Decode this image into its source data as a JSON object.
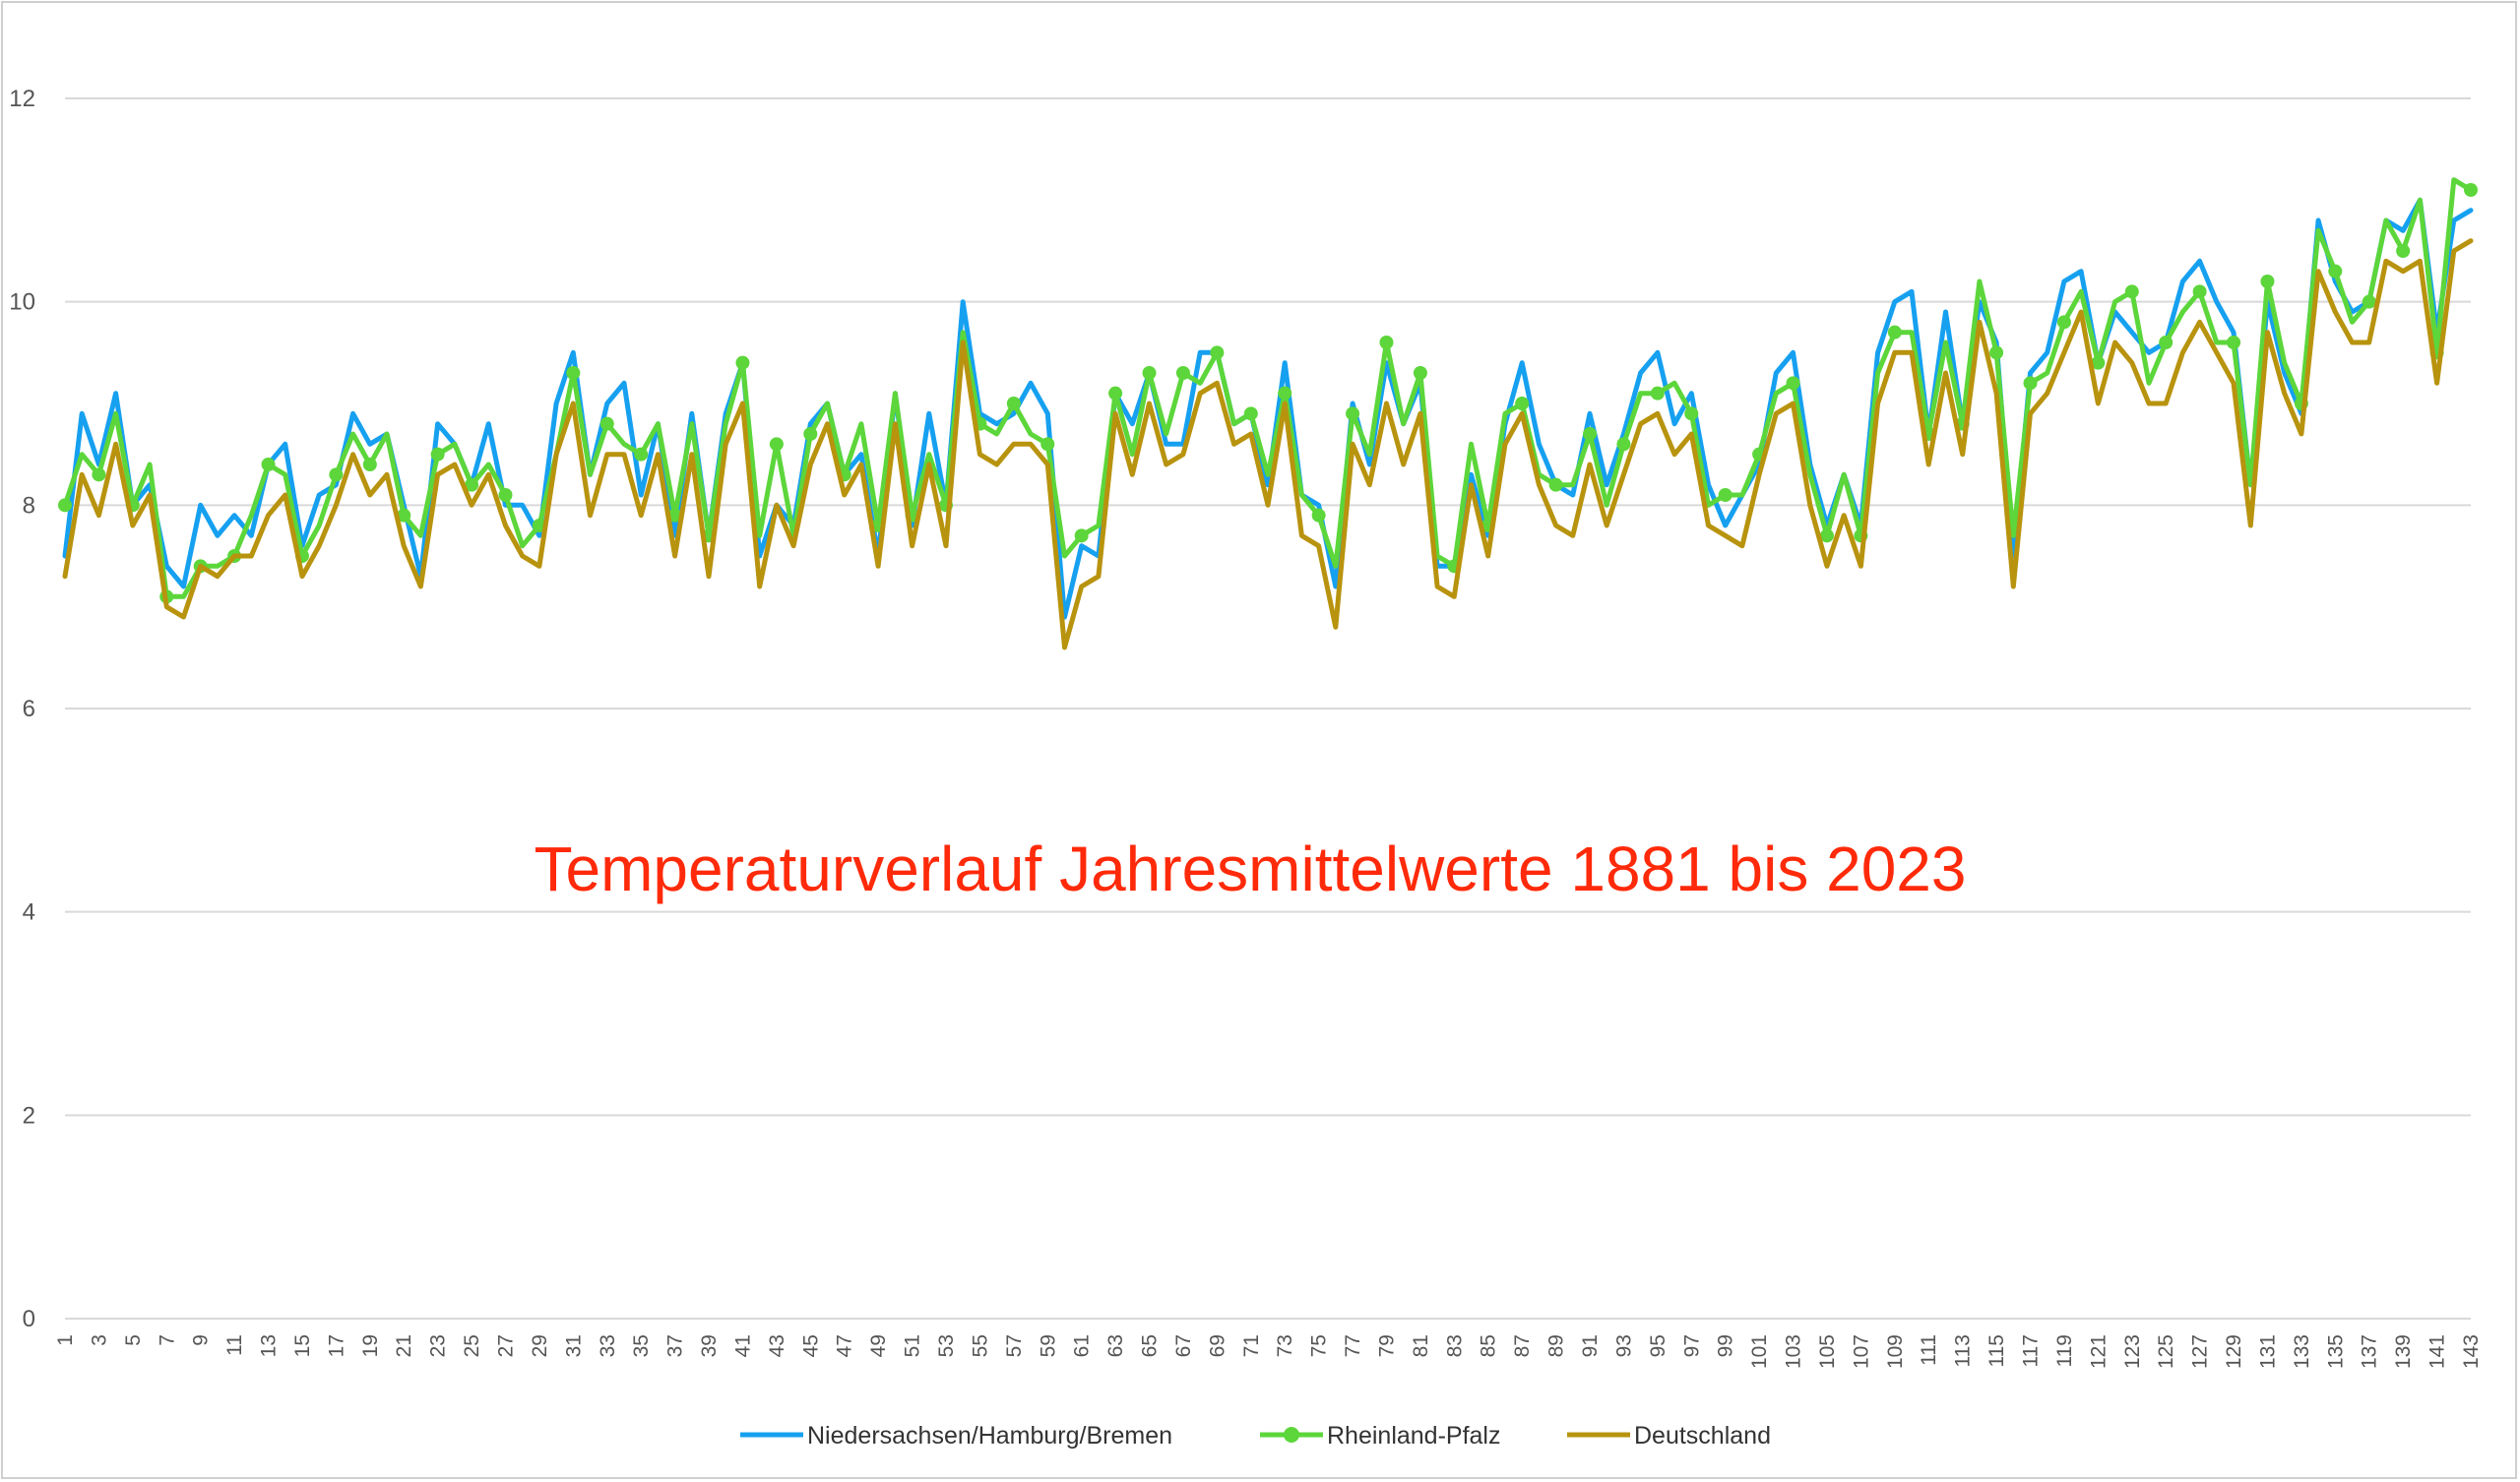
{
  "chart_data": {
    "type": "line",
    "title": "Temperaturverlauf Jahresmittelwerte 1881 bis 2023",
    "title_color": "#ff2a0a",
    "xlabel": "",
    "ylabel": "",
    "ylim": [
      0,
      12
    ],
    "y_ticks": [
      0,
      2,
      4,
      6,
      8,
      10,
      12
    ],
    "x_ticks": [
      1,
      3,
      5,
      7,
      9,
      11,
      13,
      15,
      17,
      19,
      21,
      23,
      25,
      27,
      29,
      31,
      33,
      35,
      37,
      39,
      41,
      43,
      45,
      47,
      49,
      51,
      53,
      55,
      57,
      59,
      61,
      63,
      65,
      67,
      69,
      71,
      73,
      75,
      77,
      79,
      81,
      83,
      85,
      87,
      89,
      91,
      93,
      95,
      97,
      99,
      101,
      103,
      105,
      107,
      109,
      111,
      113,
      115,
      117,
      119,
      121,
      123,
      125,
      127,
      129,
      131,
      133,
      135,
      137,
      139,
      141,
      143
    ],
    "x_range": [
      1,
      143
    ],
    "grid": "horizontal",
    "legend_position": "bottom",
    "series": [
      {
        "name": "Niedersachsen/Hamburg/Bremen",
        "color": "#16a0f0",
        "marker": "none",
        "values": [
          7.5,
          8.9,
          8.4,
          9.1,
          8.0,
          8.2,
          7.4,
          7.2,
          8.0,
          7.7,
          7.9,
          7.7,
          8.4,
          8.6,
          7.6,
          8.1,
          8.2,
          8.9,
          8.6,
          8.7,
          8.0,
          7.3,
          8.8,
          8.6,
          8.2,
          8.8,
          8.0,
          8.0,
          7.7,
          9.0,
          9.5,
          8.3,
          9.0,
          9.2,
          8.1,
          8.8,
          7.7,
          8.9,
          7.7,
          8.9,
          9.4,
          7.5,
          8.0,
          7.8,
          8.8,
          9.0,
          8.3,
          8.5,
          7.5,
          9.1,
          7.8,
          8.9,
          8.0,
          10.0,
          8.9,
          8.8,
          8.9,
          9.2,
          8.9,
          6.9,
          7.6,
          7.5,
          9.1,
          8.8,
          9.3,
          8.6,
          8.6,
          9.5,
          9.5,
          8.8,
          8.9,
          8.2,
          9.4,
          8.1,
          8.0,
          7.2,
          9.0,
          8.4,
          9.4,
          8.8,
          9.2,
          7.4,
          7.4,
          8.3,
          7.7,
          8.8,
          9.4,
          8.6,
          8.2,
          8.1,
          8.9,
          8.2,
          8.7,
          9.3,
          9.5,
          8.8,
          9.1,
          8.2,
          7.8,
          8.1,
          8.4,
          9.3,
          9.5,
          8.4,
          7.8,
          8.3,
          7.8,
          9.5,
          10.0,
          10.1,
          8.7,
          9.9,
          8.8,
          10.0,
          9.6,
          7.5,
          9.3,
          9.5,
          10.2,
          10.3,
          9.4,
          9.9,
          9.7,
          9.5,
          9.6,
          10.2,
          10.4,
          10.0,
          9.7,
          8.2,
          10.0,
          9.3,
          8.9,
          10.8,
          10.2,
          9.9,
          10.0,
          10.8,
          10.7,
          11.0,
          9.7,
          10.8,
          10.9
        ]
      },
      {
        "name": "Rheinland-Pfalz",
        "color": "#5cd63a",
        "marker": "circle",
        "values": [
          8.0,
          8.5,
          8.3,
          8.9,
          8.0,
          8.4,
          7.1,
          7.1,
          7.4,
          7.4,
          7.5,
          7.9,
          8.4,
          8.3,
          7.5,
          7.8,
          8.3,
          8.7,
          8.4,
          8.7,
          7.9,
          7.7,
          8.5,
          8.6,
          8.2,
          8.4,
          8.1,
          7.6,
          7.8,
          8.5,
          9.3,
          8.3,
          8.8,
          8.6,
          8.5,
          8.8,
          7.9,
          8.8,
          7.7,
          8.8,
          9.4,
          7.7,
          8.6,
          7.7,
          8.7,
          9.0,
          8.3,
          8.8,
          7.8,
          9.1,
          7.9,
          8.5,
          8.0,
          9.7,
          8.8,
          8.7,
          9.0,
          8.7,
          8.6,
          7.5,
          7.7,
          7.8,
          9.1,
          8.5,
          9.3,
          8.7,
          9.3,
          9.2,
          9.5,
          8.8,
          8.9,
          8.3,
          9.1,
          8.1,
          7.9,
          7.4,
          8.9,
          8.5,
          9.6,
          8.8,
          9.3,
          7.5,
          7.4,
          8.6,
          7.8,
          8.9,
          9.0,
          8.3,
          8.2,
          8.2,
          8.7,
          8.0,
          8.6,
          9.1,
          9.1,
          9.2,
          8.9,
          8.0,
          8.1,
          8.1,
          8.5,
          9.1,
          9.2,
          8.3,
          7.7,
          8.3,
          7.7,
          9.3,
          9.7,
          9.7,
          8.7,
          9.6,
          8.8,
          10.2,
          9.5,
          7.7,
          9.2,
          9.3,
          9.8,
          10.1,
          9.4,
          10.0,
          10.1,
          9.2,
          9.6,
          9.9,
          10.1,
          9.6,
          9.6,
          8.2,
          10.2,
          9.4,
          9.0,
          10.7,
          10.3,
          9.8,
          10.0,
          10.8,
          10.5,
          11.0,
          9.5,
          11.2,
          11.1
        ]
      },
      {
        "name": "Deutschland",
        "color": "#b8930e",
        "marker": "none",
        "values": [
          7.3,
          8.3,
          7.9,
          8.6,
          7.8,
          8.1,
          7.0,
          6.9,
          7.4,
          7.3,
          7.5,
          7.5,
          7.9,
          8.1,
          7.3,
          7.6,
          8.0,
          8.5,
          8.1,
          8.3,
          7.6,
          7.2,
          8.3,
          8.4,
          8.0,
          8.3,
          7.8,
          7.5,
          7.4,
          8.5,
          9.0,
          7.9,
          8.5,
          8.5,
          7.9,
          8.5,
          7.5,
          8.5,
          7.3,
          8.6,
          9.0,
          7.2,
          8.0,
          7.6,
          8.4,
          8.8,
          8.1,
          8.4,
          7.4,
          8.8,
          7.6,
          8.4,
          7.6,
          9.6,
          8.5,
          8.4,
          8.6,
          8.6,
          8.4,
          6.6,
          7.2,
          7.3,
          8.9,
          8.3,
          9.0,
          8.4,
          8.5,
          9.1,
          9.2,
          8.6,
          8.7,
          8.0,
          9.0,
          7.7,
          7.6,
          6.8,
          8.6,
          8.2,
          9.0,
          8.4,
          8.9,
          7.2,
          7.1,
          8.2,
          7.5,
          8.6,
          8.9,
          8.2,
          7.8,
          7.7,
          8.4,
          7.8,
          8.3,
          8.8,
          8.9,
          8.5,
          8.7,
          7.8,
          7.7,
          7.6,
          8.3,
          8.9,
          9.0,
          8.0,
          7.4,
          7.9,
          7.4,
          9.0,
          9.5,
          9.5,
          8.4,
          9.3,
          8.5,
          9.8,
          9.1,
          7.2,
          8.9,
          9.1,
          9.5,
          9.9,
          9.0,
          9.6,
          9.4,
          9.0,
          9.0,
          9.5,
          9.8,
          9.5,
          9.2,
          7.8,
          9.7,
          9.1,
          8.7,
          10.3,
          9.9,
          9.6,
          9.6,
          10.4,
          10.3,
          10.4,
          9.2,
          10.5,
          10.6
        ]
      }
    ]
  }
}
